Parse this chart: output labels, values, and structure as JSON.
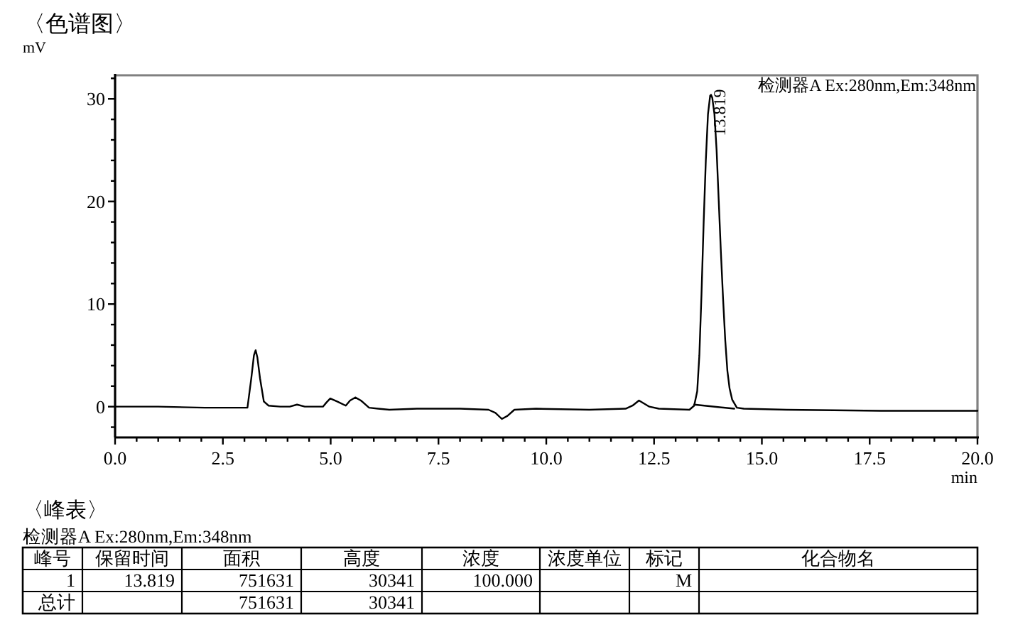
{
  "chart_data": [
    {
      "type": "line",
      "title": "〈色谱图〉",
      "ylabel": "mV",
      "xlabel": "min",
      "xlim": [
        0,
        20
      ],
      "ylim": [
        -3,
        32.3
      ],
      "xticks": [
        {
          "value": 0,
          "label": "0.0"
        },
        {
          "value": 0.5,
          "label": null
        },
        {
          "value": 1,
          "label": null
        },
        {
          "value": 1.5,
          "label": null
        },
        {
          "value": 2,
          "label": null
        },
        {
          "value": 2.5,
          "label": "2.5"
        },
        {
          "value": 3,
          "label": null
        },
        {
          "value": 3.5,
          "label": null
        },
        {
          "value": 4,
          "label": null
        },
        {
          "value": 4.5,
          "label": null
        },
        {
          "value": 5,
          "label": "5.0"
        },
        {
          "value": 5.5,
          "label": null
        },
        {
          "value": 6,
          "label": null
        },
        {
          "value": 6.5,
          "label": null
        },
        {
          "value": 7,
          "label": null
        },
        {
          "value": 7.5,
          "label": "7.5"
        },
        {
          "value": 8,
          "label": null
        },
        {
          "value": 8.5,
          "label": null
        },
        {
          "value": 9,
          "label": null
        },
        {
          "value": 9.5,
          "label": null
        },
        {
          "value": 10,
          "label": "10.0"
        },
        {
          "value": 10.5,
          "label": null
        },
        {
          "value": 11,
          "label": null
        },
        {
          "value": 11.5,
          "label": null
        },
        {
          "value": 12,
          "label": null
        },
        {
          "value": 12.5,
          "label": "12.5"
        },
        {
          "value": 13,
          "label": null
        },
        {
          "value": 13.5,
          "label": null
        },
        {
          "value": 14,
          "label": null
        },
        {
          "value": 14.5,
          "label": null
        },
        {
          "value": 15,
          "label": "15.0"
        },
        {
          "value": 15.5,
          "label": null
        },
        {
          "value": 16,
          "label": null
        },
        {
          "value": 16.5,
          "label": null
        },
        {
          "value": 17,
          "label": null
        },
        {
          "value": 17.5,
          "label": "17.5"
        },
        {
          "value": 18,
          "label": null
        },
        {
          "value": 18.5,
          "label": null
        },
        {
          "value": 19,
          "label": null
        },
        {
          "value": 19.5,
          "label": null
        },
        {
          "value": 20,
          "label": "20.0"
        }
      ],
      "yticks": [
        {
          "value": -2,
          "label": null
        },
        0,
        {
          "value": 2,
          "label": null
        },
        {
          "value": 4,
          "label": null
        },
        {
          "value": 6,
          "label": null
        },
        {
          "value": 8,
          "label": null
        },
        10,
        {
          "value": 12,
          "label": null
        },
        {
          "value": 14,
          "label": null
        },
        {
          "value": 16,
          "label": null
        },
        {
          "value": 18,
          "label": null
        },
        20,
        {
          "value": 22,
          "label": null
        },
        {
          "value": 24,
          "label": null
        },
        {
          "value": 26,
          "label": null
        },
        {
          "value": 28,
          "label": null
        },
        30,
        {
          "value": 32,
          "label": null
        }
      ],
      "series": [
        {
          "color": "#000000",
          "x": [
            0,
            1,
            2.08,
            2.6,
            3.07,
            3.16,
            3.22,
            3.26,
            3.3,
            3.36,
            3.45,
            3.56,
            3.83,
            4.05,
            4.22,
            4.4,
            4.82,
            4.9,
            4.99,
            5.15,
            5.35,
            5.45,
            5.57,
            5.7,
            5.89,
            6.1,
            6.36,
            7,
            8,
            8.66,
            8.82,
            8.97,
            9.1,
            9.26,
            9.76,
            11,
            11.84,
            12,
            12.15,
            12.39,
            12.61,
            13.32,
            13.43,
            13.5,
            13.55,
            13.6,
            13.65,
            13.7,
            13.75,
            13.8,
            13.82,
            13.85,
            13.9,
            13.95,
            14,
            14.05,
            14.1,
            14.15,
            14.2,
            14.25,
            14.31,
            14.42,
            14.58,
            15.57,
            17.76,
            20
          ],
          "values": [
            0,
            0,
            -0.1,
            -0.1,
            -0.1,
            2.8,
            5,
            5.5,
            4.8,
            2.8,
            0.5,
            0.1,
            0,
            0,
            0.2,
            0,
            0,
            0.4,
            0.8,
            0.5,
            0.1,
            0.6,
            0.9,
            0.6,
            -0.1,
            -0.2,
            -0.3,
            -0.2,
            -0.2,
            -0.3,
            -0.6,
            -1.2,
            -0.9,
            -0.3,
            -0.2,
            -0.3,
            -0.2,
            0.1,
            0.6,
            0,
            -0.2,
            -0.3,
            0.1,
            1.5,
            5,
            11,
            18,
            24,
            28.5,
            30.3,
            30.4,
            30.1,
            28.5,
            25,
            20,
            15,
            10.5,
            6.5,
            3.5,
            1.8,
            0.7,
            -0.1,
            -0.2,
            -0.3,
            -0.4,
            -0.4
          ]
        },
        {
          "color": "#000000",
          "x": [
            13.43,
            14.36
          ],
          "values": [
            0.2,
            -0.2
          ]
        }
      ],
      "annotations": [
        {
          "text": "13.819",
          "x": 13.819,
          "y": 30.4
        },
        "检测器A Ex:280nm,Em:348nm"
      ]
    },
    {
      "type": "other",
      "title": "〈峰表〉",
      "subtitle": "检测器A Ex:280nm,Em:348nm",
      "categories": [
        "峰号",
        "保留时间",
        "面积",
        "高度",
        "浓度",
        "浓度单位",
        "标记",
        "化合物名"
      ],
      "cell_labels": [
        [
          "1",
          "13.819",
          "751631",
          "30341",
          "100.000",
          null,
          "M",
          null
        ],
        [
          "总计",
          null,
          "751631",
          "30341",
          null,
          null,
          null,
          null
        ]
      ]
    }
  ]
}
